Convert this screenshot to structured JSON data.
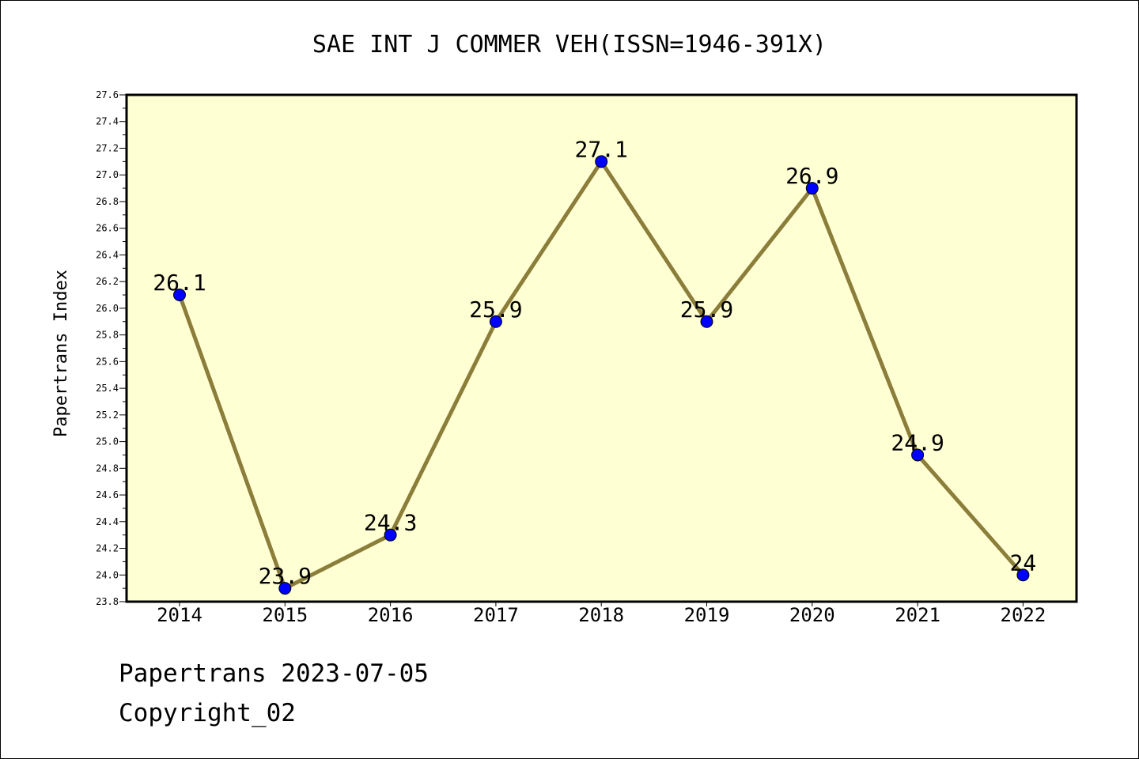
{
  "chart_data": {
    "type": "line",
    "title": "SAE INT J COMMER VEH(ISSN=1946-391X)",
    "xlabel": "",
    "ylabel": "Papertrans Index",
    "categories": [
      "2014",
      "2015",
      "2016",
      "2017",
      "2018",
      "2019",
      "2020",
      "2021",
      "2022"
    ],
    "series": [
      {
        "values": [
          26.1,
          23.9,
          24.3,
          25.9,
          27.1,
          25.9,
          26.9,
          24.9,
          24.0
        ],
        "labels": [
          "26.1",
          "23.9",
          "24.3",
          "25.9",
          "27.1",
          "25.9",
          "26.9",
          "24.9",
          "24"
        ]
      }
    ],
    "ylim": [
      23.8,
      27.6
    ],
    "yticks": [
      "23.8",
      "24.0",
      "24.2",
      "24.4",
      "24.6",
      "24.8",
      "25.0",
      "25.2",
      "25.4",
      "25.6",
      "25.8",
      "26.0",
      "26.2",
      "26.4",
      "26.6",
      "26.8",
      "27.0",
      "27.2",
      "27.4",
      "27.6"
    ],
    "grid": false,
    "line_color": "#8B7D3A",
    "marker_color": "#0000FF",
    "plot_background": "#FFFFD4"
  },
  "footer": {
    "line1": "Papertrans 2023-07-05",
    "line2": "Copyright_02"
  }
}
